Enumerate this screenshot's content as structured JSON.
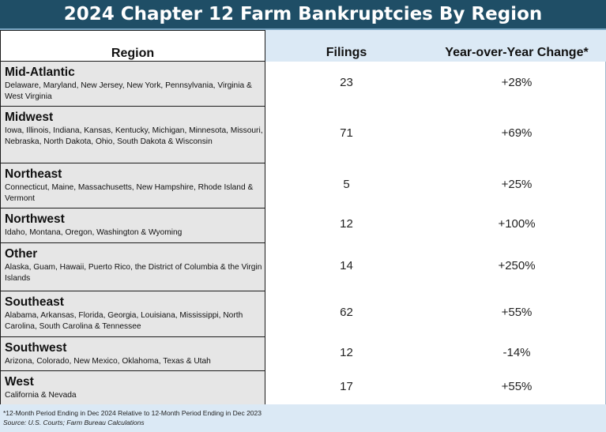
{
  "chart_data": {
    "type": "table",
    "title": "2024 Chapter 12 Farm Bankruptcies By Region",
    "columns": [
      "Region",
      "Filings",
      "Year-over-Year Change*"
    ],
    "rows": [
      {
        "region": "Mid-Atlantic",
        "states": "Delaware, Maryland, New Jersey, New York, Pennsylvania, Virginia & West Virginia",
        "filings": 23,
        "change": "+28%"
      },
      {
        "region": "Midwest",
        "states": "Iowa, Illinois, Indiana, Kansas, Kentucky, Michigan, Minnesota, Missouri, Nebraska, North Dakota, Ohio, South Dakota & Wisconsin",
        "filings": 71,
        "change": "+69%"
      },
      {
        "region": "Northeast",
        "states": "Connecticut, Maine, Massachusetts, New Hampshire, Rhode Island & Vermont",
        "filings": 5,
        "change": "+25%"
      },
      {
        "region": "Northwest",
        "states": "Idaho, Montana, Oregon, Washington & Wyoming",
        "filings": 12,
        "change": "+100%"
      },
      {
        "region": "Other",
        "states": "Alaska, Guam, Hawaii, Puerto Rico, the District of Columbia & the Virgin Islands",
        "filings": 14,
        "change": "+250%"
      },
      {
        "region": "Southeast",
        "states": "Alabama, Arkansas, Florida, Georgia, Louisiana, Mississippi, North Carolina, South Carolina & Tennessee",
        "filings": 62,
        "change": "+55%"
      },
      {
        "region": "Southwest",
        "states": "Arizona, Colorado, New Mexico, Oklahoma, Texas & Utah",
        "filings": 12,
        "change": "-14%"
      },
      {
        "region": "West",
        "states": "California & Nevada",
        "filings": 17,
        "change": "+55%"
      }
    ],
    "footnote": "*12-Month Period Ending in Dec 2024 Relative to 12-Month Period Ending in Dec 2023",
    "source": "Source: U.S. Courts; Farm Bureau Calculations"
  },
  "colors": {
    "title_bg": "#1f4e66",
    "header_bg": "#dbe9f5",
    "region_cell_bg": "#e6e6e6"
  }
}
